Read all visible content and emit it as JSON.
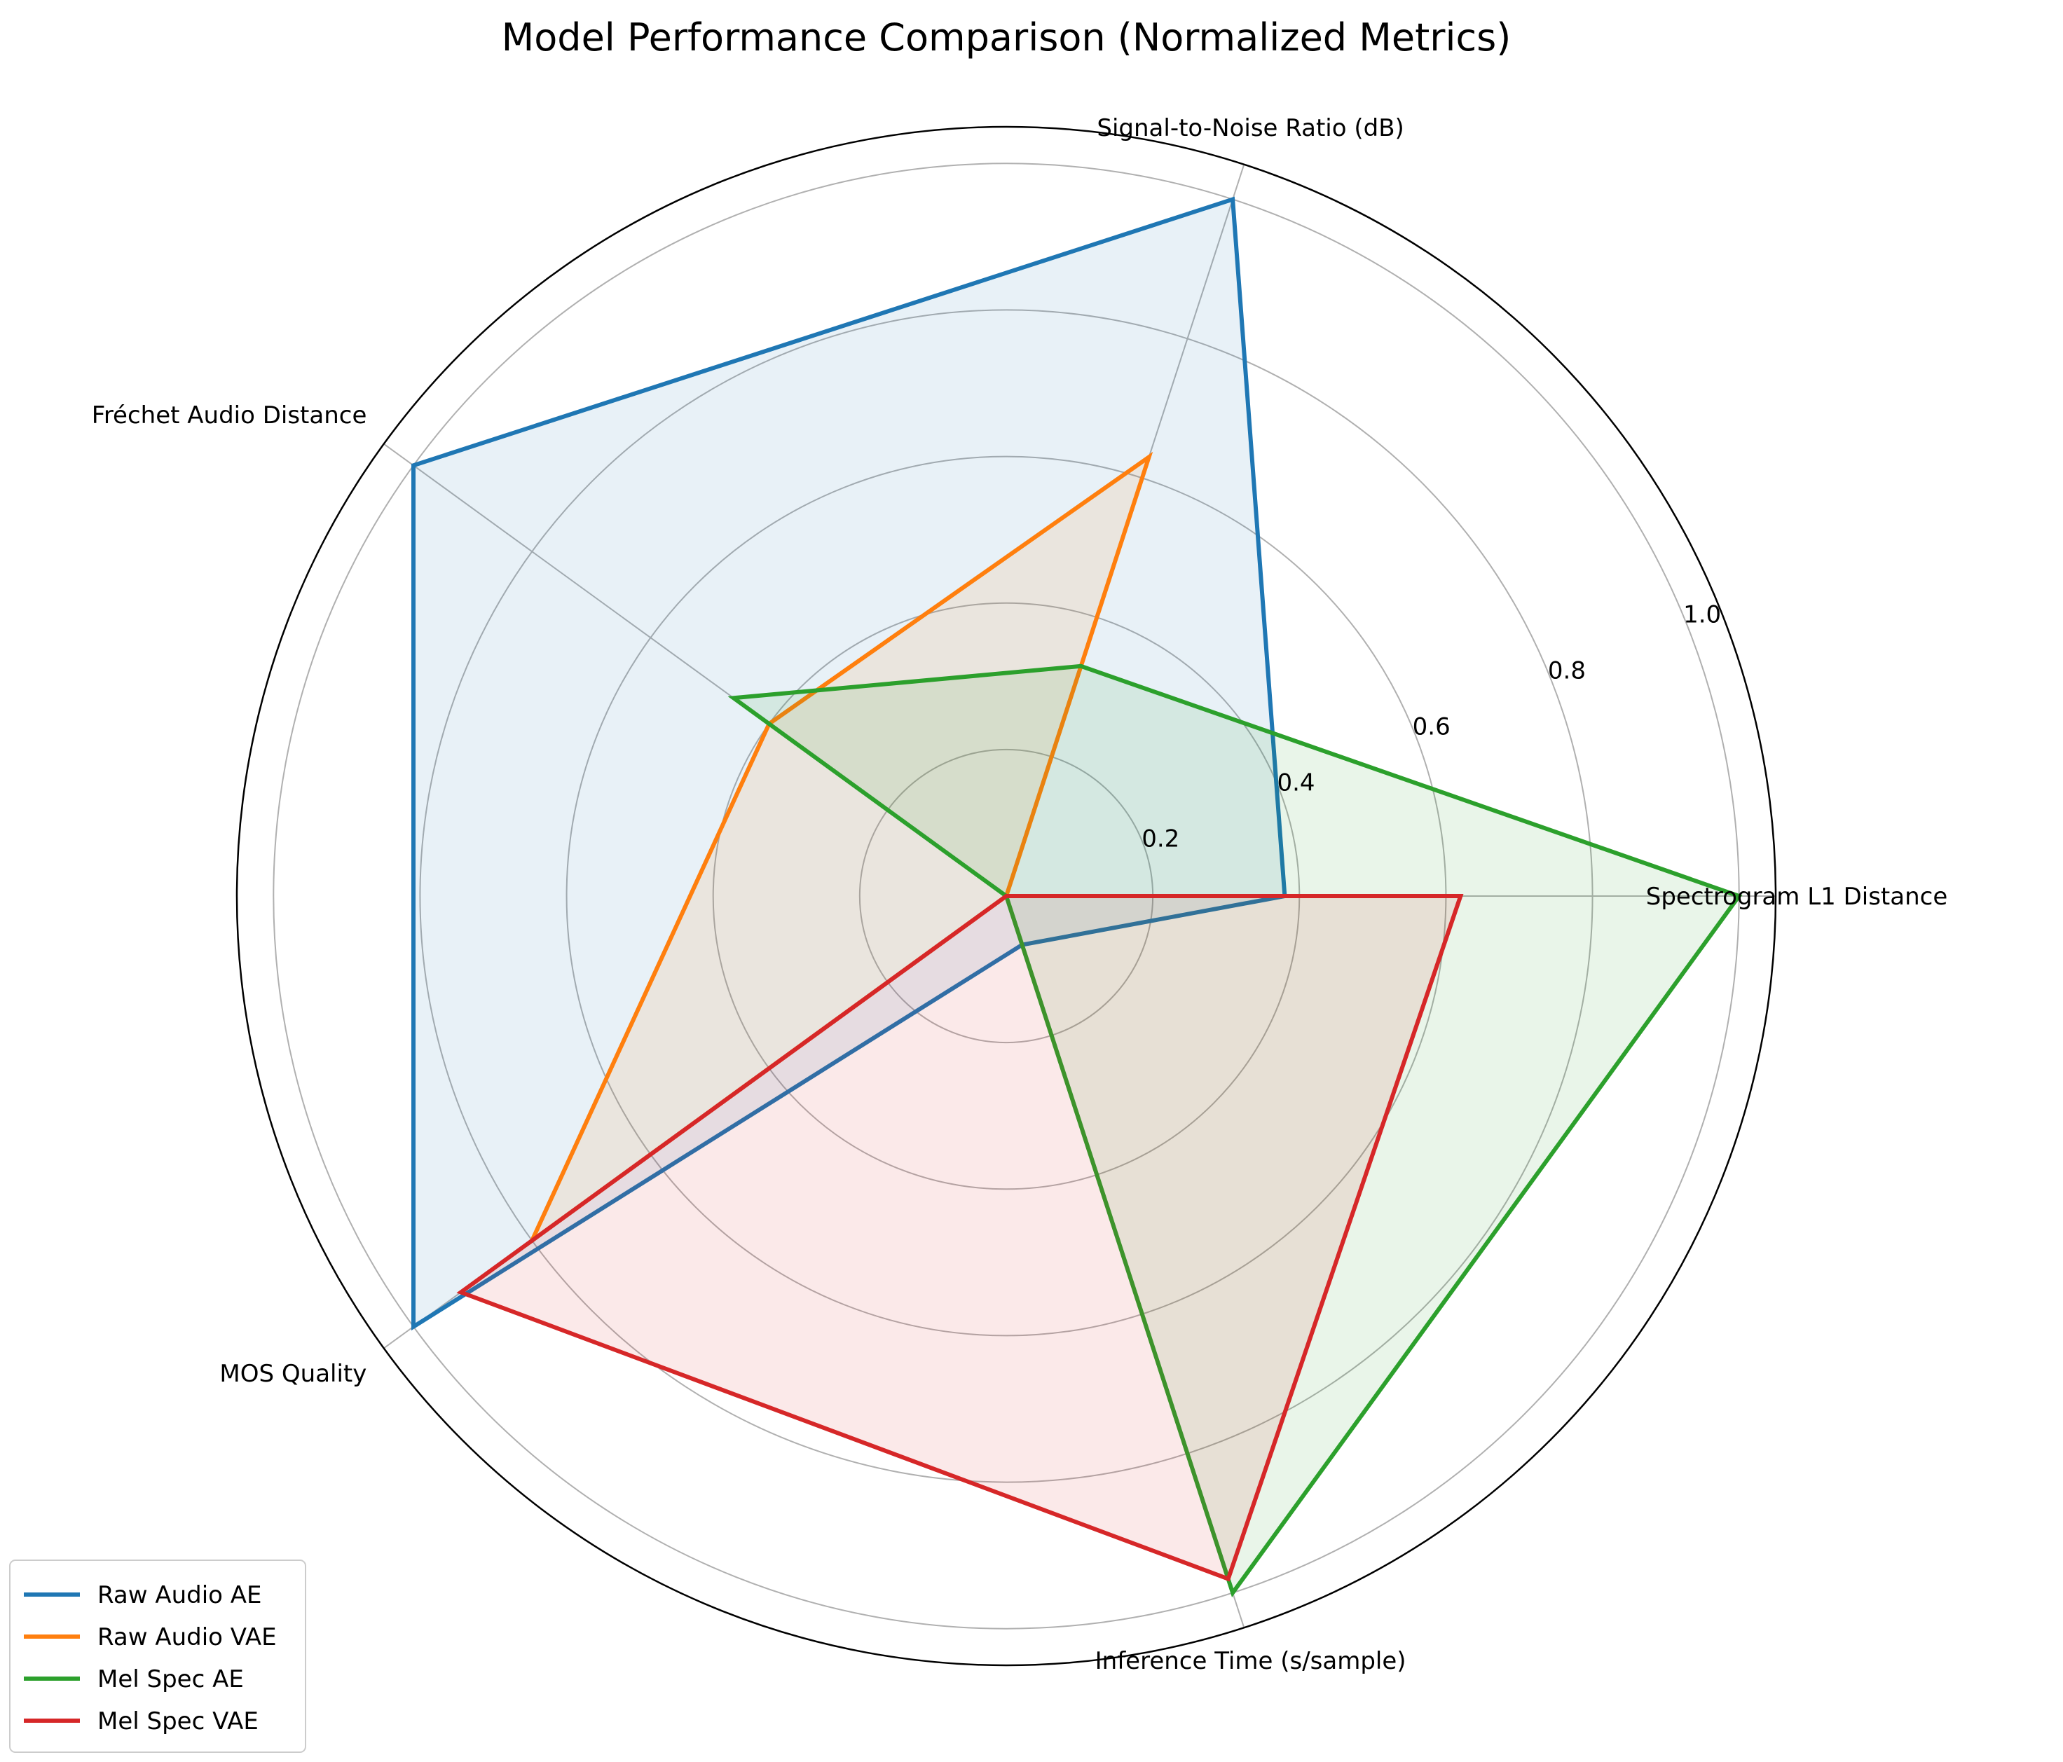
{
  "chart_data": {
    "type": "radar",
    "title": "Model Performance Comparison (Normalized Metrics)",
    "categories": [
      "Spectrogram L1 Distance",
      "Signal-to-Noise Ratio (dB)",
      "Fréchet Audio Distance",
      "MOS Quality",
      "Inference Time (s/sample)"
    ],
    "rlim": [
      0,
      1.05
    ],
    "rticks": [
      0.2,
      0.4,
      0.6,
      0.8,
      1.0
    ],
    "rtick_labels": [
      "0.2",
      "0.4",
      "0.6",
      "0.8",
      "1.0"
    ],
    "grid": true,
    "legend_position": "lower-left",
    "series": [
      {
        "name": "Raw Audio AE",
        "color": "#1f77b4",
        "values": [
          0.38,
          1.0,
          1.0,
          1.0,
          0.07
        ]
      },
      {
        "name": "Raw Audio VAE",
        "color": "#ff7f0e",
        "values": [
          0.0,
          0.63,
          0.4,
          0.8,
          0.0
        ]
      },
      {
        "name": "Mel Spec AE",
        "color": "#2ca02c",
        "values": [
          1.0,
          0.33,
          0.46,
          0.0,
          1.0
        ]
      },
      {
        "name": "Mel Spec VAE",
        "color": "#d62728",
        "values": [
          0.62,
          0.0,
          0.0,
          0.92,
          0.98
        ]
      }
    ]
  }
}
